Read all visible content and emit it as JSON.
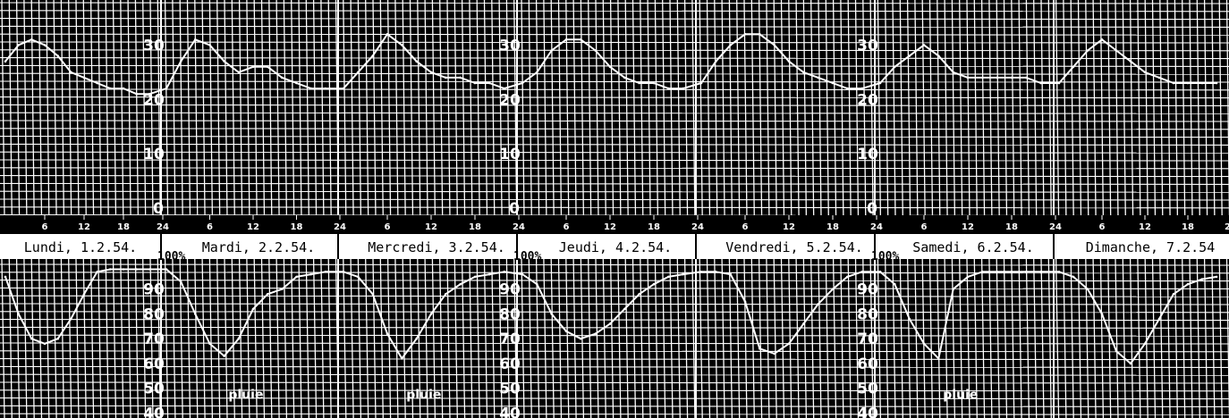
{
  "chart_data": [
    {
      "type": "line",
      "panel": "temperature",
      "ylim": [
        0,
        35
      ],
      "y_tick_labels": [
        "10",
        "20",
        "30"
      ],
      "zero_label": "0",
      "x_hours": [
        0,
        2,
        4,
        6,
        8,
        10,
        12,
        14,
        16,
        18,
        20,
        22
      ],
      "x_day_start": "Lundi",
      "series": [
        {
          "values": [
            [
              27,
              30,
              31,
              30,
              28,
              25,
              24,
              23,
              22,
              22,
              21,
              21
            ],
            [
              22,
              27,
              31,
              30,
              27,
              25,
              26,
              26,
              24,
              23,
              22,
              22
            ],
            [
              22,
              25,
              28,
              32,
              30,
              27,
              25,
              24,
              24,
              23,
              23,
              22
            ],
            [
              23,
              25,
              29,
              31,
              31,
              29,
              26,
              24,
              23,
              23,
              22,
              22
            ],
            [
              23,
              27,
              30,
              32,
              32,
              30,
              27,
              25,
              24,
              23,
              22,
              22
            ],
            [
              23,
              26,
              28,
              30,
              28,
              25,
              24,
              24,
              24,
              24,
              24,
              23
            ],
            [
              23,
              26,
              29,
              31,
              29,
              27,
              25,
              24,
              23,
              23,
              23,
              23
            ]
          ]
        }
      ]
    },
    {
      "type": "line",
      "panel": "humidity",
      "ylim": [
        38,
        100
      ],
      "y_tick_labels": [
        "40",
        "50",
        "60",
        "70",
        "80",
        "90"
      ],
      "top_label": "100%",
      "x_hours": [
        0,
        2,
        4,
        6,
        8,
        10,
        12,
        14,
        16,
        18,
        20,
        22
      ],
      "series": [
        {
          "values": [
            [
              95,
              80,
              70,
              68,
              70,
              78,
              88,
              97,
              98,
              98,
              98,
              98
            ],
            [
              98,
              93,
              80,
              68,
              63,
              70,
              82,
              88,
              90,
              95,
              96,
              97
            ],
            [
              97,
              95,
              88,
              72,
              62,
              70,
              80,
              88,
              92,
              95,
              96,
              97
            ],
            [
              96,
              92,
              80,
              73,
              70,
              72,
              76,
              82,
              88,
              92,
              95,
              96
            ],
            [
              97,
              97,
              96,
              85,
              66,
              64,
              68,
              76,
              84,
              90,
              95,
              97
            ],
            [
              97,
              92,
              78,
              68,
              62,
              90,
              95,
              97,
              97,
              97,
              97,
              97
            ],
            [
              97,
              95,
              90,
              80,
              65,
              60,
              68,
              78,
              88,
              92,
              94,
              95
            ]
          ]
        }
      ]
    }
  ],
  "day_labels": [
    "Lundi, 1.2.54.",
    "Mardi, 2.2.54.",
    "Mercredi, 3.2.54.",
    "Jeudi, 4.2.54.",
    "Vendredi, 5.2.54.",
    "Samedi, 6.2.54.",
    "Dimanche, 7.2.54"
  ],
  "hour_tick_labels": [
    "6",
    "12",
    "18",
    "24"
  ],
  "rain_label": "pluie",
  "rain_days": [
    1,
    2,
    5
  ],
  "colors": {
    "background": "#000000",
    "grid": "#ffffff",
    "trace": "#ffffff",
    "band": "#ffffff",
    "text": "#000000"
  }
}
